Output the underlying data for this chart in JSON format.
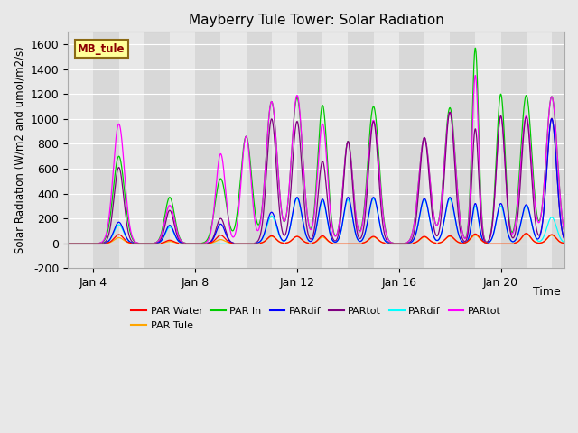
{
  "title": "Mayberry Tule Tower: Solar Radiation",
  "ylabel": "Solar Radiation (W/m2 and umol/m2/s)",
  "xlabel": "Time",
  "ylim": [
    -200,
    1700
  ],
  "yticks": [
    -200,
    0,
    200,
    400,
    600,
    800,
    1000,
    1200,
    1400,
    1600
  ],
  "xlim_days": [
    3.0,
    22.5
  ],
  "xtick_days": [
    4,
    8,
    12,
    16,
    20
  ],
  "xtick_labels": [
    "Jan 4",
    "Jan 8",
    "Jan 12",
    "Jan 16",
    "Jan 20"
  ],
  "legend_entries": [
    "PAR Water",
    "PAR Tule",
    "PAR In",
    "PARdif",
    "PARtot",
    "PARdif",
    "PARtot"
  ],
  "legend_colors": [
    "#ff0000",
    "#ffa500",
    "#00cc00",
    "#0000ff",
    "#800080",
    "#00ffff",
    "#ff00ff"
  ],
  "label_box": "MB_tule",
  "label_box_facecolor": "#ffff99",
  "label_box_edgecolor": "#8b6914",
  "series": {
    "PAR_Water": {
      "color": "#ff0000",
      "peaks": [
        {
          "day": 5.0,
          "peak": 70,
          "sigma": 0.18
        },
        {
          "day": 7.0,
          "peak": 25,
          "sigma": 0.15
        },
        {
          "day": 9.0,
          "peak": 65,
          "sigma": 0.17
        },
        {
          "day": 11.0,
          "peak": 60,
          "sigma": 0.17
        },
        {
          "day": 12.0,
          "peak": 55,
          "sigma": 0.17
        },
        {
          "day": 13.0,
          "peak": 60,
          "sigma": 0.15
        },
        {
          "day": 15.0,
          "peak": 55,
          "sigma": 0.17
        },
        {
          "day": 17.0,
          "peak": 55,
          "sigma": 0.17
        },
        {
          "day": 18.0,
          "peak": 60,
          "sigma": 0.17
        },
        {
          "day": 19.0,
          "peak": 75,
          "sigma": 0.17
        },
        {
          "day": 21.0,
          "peak": 80,
          "sigma": 0.17
        },
        {
          "day": 22.0,
          "peak": 70,
          "sigma": 0.17
        }
      ]
    },
    "PAR_Tule": {
      "color": "#ffa500",
      "peaks": [
        {
          "day": 5.0,
          "peak": 45,
          "sigma": 0.18
        },
        {
          "day": 7.0,
          "peak": 15,
          "sigma": 0.15
        },
        {
          "day": 9.0,
          "peak": 30,
          "sigma": 0.17
        },
        {
          "day": 11.0,
          "peak": 55,
          "sigma": 0.17
        },
        {
          "day": 12.0,
          "peak": 55,
          "sigma": 0.17
        },
        {
          "day": 13.0,
          "peak": 50,
          "sigma": 0.15
        },
        {
          "day": 15.0,
          "peak": 50,
          "sigma": 0.17
        },
        {
          "day": 17.0,
          "peak": 50,
          "sigma": 0.17
        },
        {
          "day": 18.0,
          "peak": 55,
          "sigma": 0.17
        },
        {
          "day": 19.0,
          "peak": 65,
          "sigma": 0.17
        },
        {
          "day": 21.0,
          "peak": 75,
          "sigma": 0.17
        },
        {
          "day": 22.0,
          "peak": 65,
          "sigma": 0.17
        }
      ]
    },
    "PAR_In": {
      "color": "#00cc00",
      "peaks": [
        {
          "day": 5.0,
          "peak": 700,
          "sigma": 0.22
        },
        {
          "day": 7.0,
          "peak": 370,
          "sigma": 0.19
        },
        {
          "day": 9.0,
          "peak": 520,
          "sigma": 0.22
        },
        {
          "day": 10.0,
          "peak": 860,
          "sigma": 0.22
        },
        {
          "day": 11.0,
          "peak": 1140,
          "sigma": 0.22
        },
        {
          "day": 12.0,
          "peak": 1170,
          "sigma": 0.22
        },
        {
          "day": 13.0,
          "peak": 1110,
          "sigma": 0.19
        },
        {
          "day": 14.0,
          "peak": 820,
          "sigma": 0.19
        },
        {
          "day": 15.0,
          "peak": 1100,
          "sigma": 0.22
        },
        {
          "day": 17.0,
          "peak": 850,
          "sigma": 0.22
        },
        {
          "day": 18.0,
          "peak": 1090,
          "sigma": 0.22
        },
        {
          "day": 19.0,
          "peak": 1570,
          "sigma": 0.13
        },
        {
          "day": 20.0,
          "peak": 1200,
          "sigma": 0.17
        },
        {
          "day": 21.0,
          "peak": 1190,
          "sigma": 0.22
        },
        {
          "day": 22.0,
          "peak": 1180,
          "sigma": 0.22
        }
      ]
    },
    "PARdif_blue": {
      "color": "#0000ff",
      "peaks": [
        {
          "day": 5.0,
          "peak": 170,
          "sigma": 0.19
        },
        {
          "day": 7.0,
          "peak": 145,
          "sigma": 0.17
        },
        {
          "day": 9.0,
          "peak": 155,
          "sigma": 0.17
        },
        {
          "day": 11.0,
          "peak": 250,
          "sigma": 0.19
        },
        {
          "day": 12.0,
          "peak": 370,
          "sigma": 0.19
        },
        {
          "day": 13.0,
          "peak": 355,
          "sigma": 0.17
        },
        {
          "day": 14.0,
          "peak": 370,
          "sigma": 0.17
        },
        {
          "day": 15.0,
          "peak": 370,
          "sigma": 0.19
        },
        {
          "day": 17.0,
          "peak": 360,
          "sigma": 0.19
        },
        {
          "day": 18.0,
          "peak": 370,
          "sigma": 0.19
        },
        {
          "day": 19.0,
          "peak": 320,
          "sigma": 0.13
        },
        {
          "day": 20.0,
          "peak": 320,
          "sigma": 0.17
        },
        {
          "day": 21.0,
          "peak": 310,
          "sigma": 0.19
        },
        {
          "day": 22.0,
          "peak": 1000,
          "sigma": 0.19
        }
      ]
    },
    "PARtot_purple": {
      "color": "#800080",
      "peaks": [
        {
          "day": 5.0,
          "peak": 610,
          "sigma": 0.19
        },
        {
          "day": 7.0,
          "peak": 265,
          "sigma": 0.17
        },
        {
          "day": 9.0,
          "peak": 200,
          "sigma": 0.17
        },
        {
          "day": 11.0,
          "peak": 1000,
          "sigma": 0.19
        },
        {
          "day": 12.0,
          "peak": 980,
          "sigma": 0.19
        },
        {
          "day": 13.0,
          "peak": 660,
          "sigma": 0.17
        },
        {
          "day": 14.0,
          "peak": 820,
          "sigma": 0.17
        },
        {
          "day": 15.0,
          "peak": 980,
          "sigma": 0.19
        },
        {
          "day": 17.0,
          "peak": 850,
          "sigma": 0.19
        },
        {
          "day": 18.0,
          "peak": 1055,
          "sigma": 0.19
        },
        {
          "day": 19.0,
          "peak": 920,
          "sigma": 0.13
        },
        {
          "day": 20.0,
          "peak": 1025,
          "sigma": 0.17
        },
        {
          "day": 21.0,
          "peak": 1015,
          "sigma": 0.19
        },
        {
          "day": 22.0,
          "peak": 1005,
          "sigma": 0.19
        }
      ]
    },
    "PARdif_cyan": {
      "color": "#00ffff",
      "peaks": [
        {
          "day": 5.0,
          "peak": 150,
          "sigma": 0.19
        },
        {
          "day": 7.0,
          "peak": 130,
          "sigma": 0.17
        },
        {
          "day": 11.0,
          "peak": 220,
          "sigma": 0.19
        },
        {
          "day": 12.0,
          "peak": 360,
          "sigma": 0.19
        },
        {
          "day": 13.0,
          "peak": 340,
          "sigma": 0.17
        },
        {
          "day": 14.0,
          "peak": 350,
          "sigma": 0.17
        },
        {
          "day": 15.0,
          "peak": 360,
          "sigma": 0.19
        },
        {
          "day": 17.0,
          "peak": 350,
          "sigma": 0.19
        },
        {
          "day": 18.0,
          "peak": 355,
          "sigma": 0.19
        },
        {
          "day": 19.0,
          "peak": 300,
          "sigma": 0.13
        },
        {
          "day": 20.0,
          "peak": 300,
          "sigma": 0.17
        },
        {
          "day": 21.0,
          "peak": 300,
          "sigma": 0.19
        },
        {
          "day": 22.0,
          "peak": 210,
          "sigma": 0.19
        }
      ]
    },
    "PARtot_magenta": {
      "color": "#ff00ff",
      "peaks": [
        {
          "day": 5.0,
          "peak": 960,
          "sigma": 0.22
        },
        {
          "day": 7.0,
          "peak": 305,
          "sigma": 0.19
        },
        {
          "day": 9.0,
          "peak": 720,
          "sigma": 0.19
        },
        {
          "day": 10.0,
          "peak": 860,
          "sigma": 0.19
        },
        {
          "day": 11.0,
          "peak": 1140,
          "sigma": 0.22
        },
        {
          "day": 12.0,
          "peak": 1190,
          "sigma": 0.22
        },
        {
          "day": 13.0,
          "peak": 960,
          "sigma": 0.19
        },
        {
          "day": 14.0,
          "peak": 815,
          "sigma": 0.19
        },
        {
          "day": 15.0,
          "peak": 990,
          "sigma": 0.22
        },
        {
          "day": 17.0,
          "peak": 850,
          "sigma": 0.22
        },
        {
          "day": 18.0,
          "peak": 1055,
          "sigma": 0.22
        },
        {
          "day": 19.0,
          "peak": 1350,
          "sigma": 0.13
        },
        {
          "day": 20.0,
          "peak": 1020,
          "sigma": 0.17
        },
        {
          "day": 21.0,
          "peak": 1025,
          "sigma": 0.22
        },
        {
          "day": 22.0,
          "peak": 1180,
          "sigma": 0.22
        }
      ]
    }
  }
}
